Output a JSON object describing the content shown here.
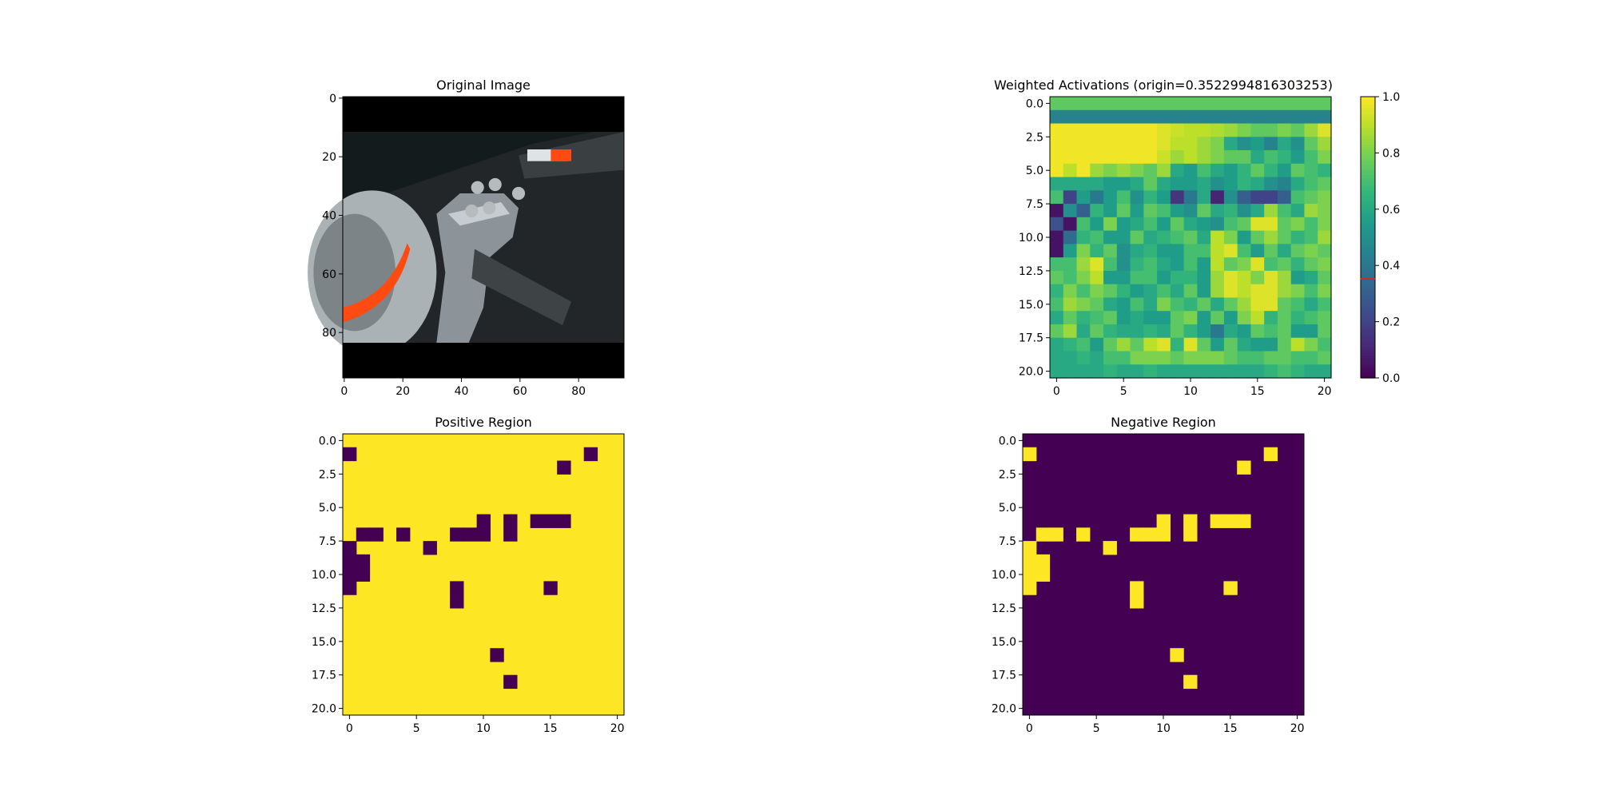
{
  "chart_data": [
    {
      "type": "image",
      "title": "Original Image",
      "description": "Photo of a car brake disc and suspension part, 96x96 pixels; black letterbox bands at top and bottom",
      "image_size": [
        96,
        96
      ],
      "xticks": [
        "0",
        "20",
        "40",
        "60",
        "80"
      ],
      "yticks": [
        "0",
        "20",
        "40",
        "60",
        "80"
      ]
    },
    {
      "type": "heatmap",
      "title": "Weighted Activations (origin=0.3522994816303253)",
      "rows": 21,
      "cols": 21,
      "colormap": "viridis",
      "vmin": 0.0,
      "vmax": 1.0,
      "origin_value": 0.3522994816303253,
      "xticks": [
        "0",
        "5",
        "10",
        "15",
        "20"
      ],
      "yticks": [
        "0.0",
        "2.5",
        "5.0",
        "7.5",
        "10.0",
        "12.5",
        "15.0",
        "17.5",
        "20.0"
      ],
      "colorbar_ticks": [
        "0.0",
        "0.2",
        "0.4",
        "0.6",
        "0.8",
        "1.0"
      ],
      "values": [
        [
          0.75,
          0.75,
          0.75,
          0.75,
          0.75,
          0.75,
          0.75,
          0.75,
          0.75,
          0.75,
          0.75,
          0.75,
          0.75,
          0.75,
          0.75,
          0.75,
          0.75,
          0.75,
          0.75,
          0.75,
          0.75
        ],
        [
          0.45,
          0.45,
          0.45,
          0.45,
          0.45,
          0.45,
          0.45,
          0.45,
          0.45,
          0.45,
          0.45,
          0.45,
          0.45,
          0.45,
          0.45,
          0.45,
          0.45,
          0.45,
          0.45,
          0.45,
          0.45
        ],
        [
          0.98,
          0.98,
          0.98,
          0.98,
          0.98,
          0.98,
          0.98,
          0.98,
          0.95,
          0.92,
          0.9,
          0.9,
          0.88,
          0.85,
          0.8,
          0.75,
          0.75,
          0.8,
          0.75,
          0.85,
          0.95
        ],
        [
          0.98,
          0.98,
          0.98,
          0.98,
          0.98,
          0.98,
          0.98,
          0.98,
          0.95,
          0.9,
          0.9,
          0.85,
          0.8,
          0.6,
          0.5,
          0.55,
          0.45,
          0.6,
          0.5,
          0.75,
          0.85
        ],
        [
          0.98,
          0.98,
          0.98,
          0.98,
          0.98,
          0.98,
          0.98,
          0.98,
          0.92,
          0.85,
          0.9,
          0.85,
          0.8,
          0.75,
          0.75,
          0.6,
          0.7,
          0.65,
          0.55,
          0.7,
          0.8
        ],
        [
          0.98,
          0.9,
          0.98,
          0.85,
          0.8,
          0.85,
          0.8,
          0.75,
          0.85,
          0.6,
          0.55,
          0.7,
          0.6,
          0.55,
          0.65,
          0.75,
          0.65,
          0.55,
          0.75,
          0.7,
          0.65
        ],
        [
          0.6,
          0.6,
          0.6,
          0.6,
          0.55,
          0.55,
          0.6,
          0.75,
          0.6,
          0.55,
          0.55,
          0.6,
          0.5,
          0.55,
          0.65,
          0.6,
          0.5,
          0.45,
          0.6,
          0.7,
          0.75
        ],
        [
          0.7,
          0.2,
          0.55,
          0.4,
          0.55,
          0.7,
          0.5,
          0.65,
          0.55,
          0.15,
          0.4,
          0.6,
          0.1,
          0.5,
          0.3,
          0.2,
          0.2,
          0.3,
          0.7,
          0.75,
          0.8
        ],
        [
          0.05,
          0.5,
          0.3,
          0.65,
          0.55,
          0.75,
          0.55,
          0.75,
          0.7,
          0.55,
          0.5,
          0.75,
          0.6,
          0.65,
          0.5,
          0.6,
          0.85,
          0.7,
          0.6,
          0.85,
          0.8
        ],
        [
          0.25,
          0.05,
          0.7,
          0.55,
          0.8,
          0.55,
          0.6,
          0.7,
          0.55,
          0.75,
          0.6,
          0.55,
          0.5,
          0.7,
          0.75,
          0.95,
          0.95,
          0.75,
          0.8,
          0.7,
          0.8
        ],
        [
          0.05,
          0.35,
          0.65,
          0.7,
          0.55,
          0.55,
          0.75,
          0.6,
          0.65,
          0.7,
          0.75,
          0.6,
          0.9,
          0.8,
          0.55,
          0.75,
          0.85,
          0.75,
          0.65,
          0.7,
          0.85
        ],
        [
          0.05,
          0.55,
          0.8,
          0.65,
          0.75,
          0.5,
          0.6,
          0.65,
          0.55,
          0.55,
          0.7,
          0.7,
          0.9,
          0.95,
          0.7,
          0.55,
          0.75,
          0.6,
          0.75,
          0.8,
          0.75
        ],
        [
          0.7,
          0.7,
          0.85,
          0.95,
          0.7,
          0.5,
          0.65,
          0.7,
          0.6,
          0.55,
          0.7,
          0.55,
          0.9,
          0.75,
          0.8,
          0.95,
          0.7,
          0.75,
          0.65,
          0.75,
          0.8
        ],
        [
          0.75,
          0.7,
          0.8,
          0.9,
          0.55,
          0.55,
          0.7,
          0.7,
          0.55,
          0.65,
          0.65,
          0.55,
          0.85,
          0.95,
          0.9,
          0.8,
          0.95,
          0.85,
          0.55,
          0.6,
          0.75
        ],
        [
          0.65,
          0.8,
          0.7,
          0.8,
          0.75,
          0.65,
          0.55,
          0.6,
          0.7,
          0.6,
          0.75,
          0.55,
          0.85,
          0.95,
          0.9,
          0.95,
          0.95,
          0.85,
          0.8,
          0.7,
          0.8
        ],
        [
          0.7,
          0.85,
          0.8,
          0.75,
          0.6,
          0.55,
          0.7,
          0.6,
          0.8,
          0.7,
          0.65,
          0.75,
          0.6,
          0.75,
          0.85,
          0.95,
          0.95,
          0.75,
          0.7,
          0.6,
          0.7
        ],
        [
          0.6,
          0.75,
          0.65,
          0.7,
          0.75,
          0.55,
          0.6,
          0.55,
          0.55,
          0.75,
          0.8,
          0.55,
          0.75,
          0.55,
          0.8,
          0.9,
          0.65,
          0.75,
          0.65,
          0.7,
          0.75
        ],
        [
          0.75,
          0.85,
          0.6,
          0.75,
          0.65,
          0.6,
          0.6,
          0.65,
          0.6,
          0.75,
          0.65,
          0.55,
          0.4,
          0.6,
          0.55,
          0.75,
          0.7,
          0.75,
          0.55,
          0.55,
          0.75
        ],
        [
          0.6,
          0.65,
          0.7,
          0.55,
          0.75,
          0.85,
          0.75,
          0.9,
          0.95,
          0.65,
          0.95,
          0.75,
          0.55,
          0.75,
          0.6,
          0.55,
          0.55,
          0.75,
          0.9,
          0.8,
          0.7
        ],
        [
          0.6,
          0.6,
          0.65,
          0.6,
          0.7,
          0.7,
          0.8,
          0.8,
          0.8,
          0.75,
          0.8,
          0.8,
          0.8,
          0.75,
          0.7,
          0.7,
          0.75,
          0.75,
          0.7,
          0.7,
          0.75
        ],
        [
          0.6,
          0.6,
          0.6,
          0.6,
          0.65,
          0.6,
          0.6,
          0.65,
          0.6,
          0.6,
          0.6,
          0.6,
          0.6,
          0.6,
          0.6,
          0.6,
          0.65,
          0.7,
          0.65,
          0.6,
          0.6
        ]
      ]
    },
    {
      "type": "heatmap",
      "title": "Positive Region",
      "rows": 21,
      "cols": 21,
      "colormap": "viridis",
      "binary": true,
      "mask_cells": [
        [
          1,
          0
        ],
        [
          1,
          18
        ],
        [
          2,
          16
        ],
        [
          6,
          10
        ],
        [
          6,
          12
        ],
        [
          6,
          14
        ],
        [
          6,
          15
        ],
        [
          6,
          16
        ],
        [
          7,
          1
        ],
        [
          7,
          2
        ],
        [
          7,
          4
        ],
        [
          7,
          8
        ],
        [
          7,
          9
        ],
        [
          7,
          10
        ],
        [
          7,
          12
        ],
        [
          8,
          0
        ],
        [
          8,
          6
        ],
        [
          9,
          0
        ],
        [
          9,
          1
        ],
        [
          10,
          0
        ],
        [
          10,
          1
        ],
        [
          11,
          0
        ],
        [
          11,
          8
        ],
        [
          11,
          15
        ],
        [
          12,
          8
        ],
        [
          16,
          11
        ],
        [
          18,
          12
        ]
      ],
      "mask_value": 0,
      "fill_value": 1,
      "xticks": [
        "0",
        "5",
        "10",
        "15",
        "20"
      ],
      "yticks": [
        "0.0",
        "2.5",
        "5.0",
        "7.5",
        "10.0",
        "12.5",
        "15.0",
        "17.5",
        "20.0"
      ]
    },
    {
      "type": "heatmap",
      "title": "Negative Region",
      "rows": 21,
      "cols": 21,
      "colormap": "viridis",
      "binary": true,
      "mask_cells": [
        [
          1,
          0
        ],
        [
          1,
          18
        ],
        [
          2,
          16
        ],
        [
          6,
          10
        ],
        [
          6,
          12
        ],
        [
          6,
          14
        ],
        [
          6,
          15
        ],
        [
          6,
          16
        ],
        [
          7,
          1
        ],
        [
          7,
          2
        ],
        [
          7,
          4
        ],
        [
          7,
          8
        ],
        [
          7,
          9
        ],
        [
          7,
          10
        ],
        [
          7,
          12
        ],
        [
          8,
          0
        ],
        [
          8,
          6
        ],
        [
          9,
          0
        ],
        [
          9,
          1
        ],
        [
          10,
          0
        ],
        [
          10,
          1
        ],
        [
          11,
          0
        ],
        [
          11,
          8
        ],
        [
          11,
          15
        ],
        [
          12,
          8
        ],
        [
          16,
          11
        ],
        [
          18,
          12
        ]
      ],
      "mask_value": 1,
      "fill_value": 0,
      "xticks": [
        "0",
        "5",
        "10",
        "15",
        "20"
      ],
      "yticks": [
        "0.0",
        "2.5",
        "5.0",
        "7.5",
        "10.0",
        "12.5",
        "15.0",
        "17.5",
        "20.0"
      ]
    }
  ]
}
